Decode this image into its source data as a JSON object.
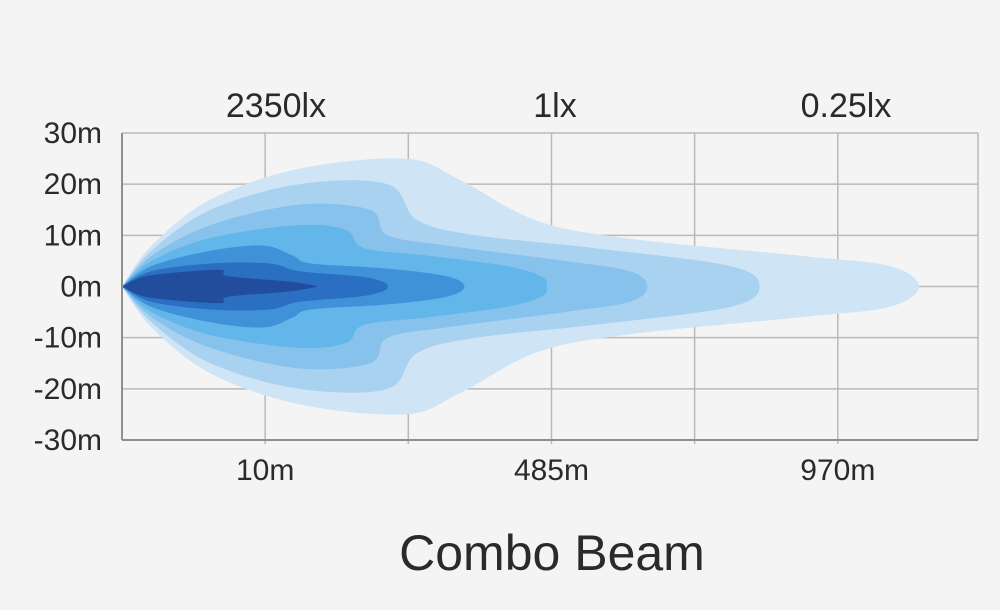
{
  "chart_data": {
    "type": "area",
    "title": "Combo Beam",
    "lux_labels": [
      "2350lx",
      "1lx",
      "0.25lx"
    ],
    "x_tick_labels": [
      "10m",
      "485m",
      "970m"
    ],
    "y_ticks": [
      30,
      20,
      10,
      0,
      -10,
      -20,
      -30
    ],
    "y_tick_labels": [
      "30m",
      "20m",
      "10m",
      "0m",
      "-10m",
      "-20m",
      "-30m"
    ],
    "ylim": [
      -30,
      30
    ],
    "xlim": [
      0,
      1450
    ],
    "x_gridlines": [
      242.5,
      485,
      727.5,
      970,
      1212.5
    ],
    "grid": true,
    "series": [
      {
        "color": "#cfe5f6",
        "outline": [
          [
            0,
            0
          ],
          [
            50,
            8
          ],
          [
            150,
            17
          ],
          [
            300,
            23
          ],
          [
            480,
            25
          ],
          [
            570,
            21
          ],
          [
            700,
            13
          ],
          [
            850,
            9.5
          ],
          [
            1150,
            6
          ],
          [
            1300,
            4
          ],
          [
            1350,
            0
          ],
          [
            1300,
            -4
          ],
          [
            1150,
            -6
          ],
          [
            850,
            -9.5
          ],
          [
            700,
            -13
          ],
          [
            570,
            -21
          ],
          [
            480,
            -25
          ],
          [
            300,
            -23
          ],
          [
            150,
            -17
          ],
          [
            50,
            -8
          ],
          [
            0,
            0
          ]
        ]
      },
      {
        "color": "#a9d2f0",
        "outline": [
          [
            0,
            0
          ],
          [
            50,
            7
          ],
          [
            150,
            15
          ],
          [
            300,
            20
          ],
          [
            450,
            20
          ],
          [
            500,
            13
          ],
          [
            600,
            10
          ],
          [
            800,
            7.5
          ],
          [
            1030,
            4
          ],
          [
            1080,
            0
          ],
          [
            1030,
            -4
          ],
          [
            800,
            -7.5
          ],
          [
            600,
            -10
          ],
          [
            500,
            -13
          ],
          [
            450,
            -20
          ],
          [
            300,
            -20
          ],
          [
            150,
            -15
          ],
          [
            50,
            -7
          ],
          [
            0,
            0
          ]
        ]
      },
      {
        "color": "#87c2ec",
        "outline": [
          [
            0,
            0
          ],
          [
            50,
            6
          ],
          [
            150,
            12
          ],
          [
            300,
            16
          ],
          [
            420,
            15
          ],
          [
            450,
            10
          ],
          [
            550,
            8
          ],
          [
            750,
            5
          ],
          [
            860,
            3
          ],
          [
            890,
            0
          ],
          [
            860,
            -3
          ],
          [
            750,
            -5
          ],
          [
            550,
            -8
          ],
          [
            450,
            -10
          ],
          [
            420,
            -15
          ],
          [
            300,
            -16
          ],
          [
            150,
            -12
          ],
          [
            50,
            -6
          ],
          [
            0,
            0
          ]
        ]
      },
      {
        "color": "#62b6ea",
        "outline": [
          [
            0,
            0
          ],
          [
            50,
            5
          ],
          [
            150,
            9.5
          ],
          [
            300,
            12
          ],
          [
            380,
            11
          ],
          [
            410,
            7.5
          ],
          [
            520,
            6
          ],
          [
            650,
            4
          ],
          [
            710,
            2
          ],
          [
            720,
            0
          ],
          [
            710,
            -2
          ],
          [
            650,
            -4
          ],
          [
            520,
            -6
          ],
          [
            410,
            -7.5
          ],
          [
            380,
            -11
          ],
          [
            300,
            -12
          ],
          [
            150,
            -9.5
          ],
          [
            50,
            -5
          ],
          [
            0,
            0
          ]
        ]
      },
      {
        "color": "#3f92d8",
        "outline": [
          [
            0,
            0
          ],
          [
            50,
            4
          ],
          [
            150,
            7
          ],
          [
            240,
            8
          ],
          [
            290,
            6
          ],
          [
            320,
            4.5
          ],
          [
            450,
            3.5
          ],
          [
            550,
            2
          ],
          [
            580,
            0
          ],
          [
            550,
            -2
          ],
          [
            450,
            -3.5
          ],
          [
            320,
            -4.5
          ],
          [
            290,
            -6
          ],
          [
            240,
            -8
          ],
          [
            150,
            -7
          ],
          [
            50,
            -4
          ],
          [
            0,
            0
          ]
        ]
      },
      {
        "color": "#2a6fc2",
        "outline": [
          [
            0,
            0
          ],
          [
            50,
            3
          ],
          [
            150,
            4.5
          ],
          [
            250,
            4.5
          ],
          [
            300,
            3
          ],
          [
            400,
            2
          ],
          [
            440,
            1
          ],
          [
            450,
            0
          ],
          [
            440,
            -1
          ],
          [
            400,
            -2
          ],
          [
            300,
            -3
          ],
          [
            250,
            -4.5
          ],
          [
            150,
            -4.5
          ],
          [
            50,
            -3
          ],
          [
            0,
            0
          ]
        ]
      },
      {
        "color": "#224d9c",
        "outline": [
          [
            0,
            0
          ],
          [
            40,
            2
          ],
          [
            120,
            3
          ],
          [
            170,
            3.2
          ],
          [
            180,
            2
          ],
          [
            280,
            1
          ],
          [
            320,
            0.3
          ],
          [
            330,
            0
          ],
          [
            320,
            -0.3
          ],
          [
            280,
            -1
          ],
          [
            180,
            -2
          ],
          [
            170,
            -3.2
          ],
          [
            120,
            -3
          ],
          [
            40,
            -2
          ],
          [
            0,
            0
          ]
        ]
      }
    ]
  }
}
